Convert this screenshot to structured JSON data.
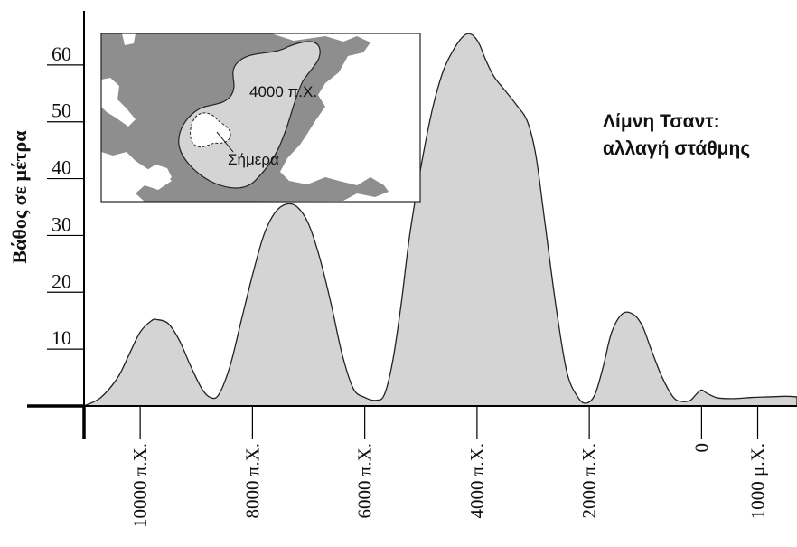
{
  "chart_data": {
    "type": "area",
    "title_lines": [
      "Λίμνη Τσαντ:",
      "αλλαγή στάθμης"
    ],
    "ylabel": "Βάθος σε μέτρα",
    "xlabel": "",
    "ylim": [
      0,
      70
    ],
    "xlim": [
      -11000,
      1700
    ],
    "yticks": [
      10,
      20,
      30,
      40,
      50,
      60
    ],
    "xticks": [
      {
        "value": -10000,
        "label": "10000 π.Χ."
      },
      {
        "value": -8000,
        "label": "8000 π.Χ."
      },
      {
        "value": -6000,
        "label": "6000 π.Χ."
      },
      {
        "value": -4000,
        "label": "4000 π.Χ."
      },
      {
        "value": -2000,
        "label": "2000 π.Χ."
      },
      {
        "value": 0,
        "label": "0"
      },
      {
        "value": 1000,
        "label": "1000 μ.Χ."
      }
    ],
    "series": [
      {
        "fill": "#d4d4d4",
        "x": [
          -11000,
          -10700,
          -10400,
          -10200,
          -10000,
          -9800,
          -9700,
          -9500,
          -9300,
          -9100,
          -8900,
          -8750,
          -8600,
          -8400,
          -8200,
          -8000,
          -7800,
          -7600,
          -7400,
          -7200,
          -7000,
          -6800,
          -6600,
          -6400,
          -6200,
          -6000,
          -5800,
          -5650,
          -5500,
          -5350,
          -5200,
          -5000,
          -4800,
          -4600,
          -4400,
          -4250,
          -4150,
          -4050,
          -3950,
          -3850,
          -3700,
          -3500,
          -3300,
          -3100,
          -2950,
          -2800,
          -2600,
          -2400,
          -2200,
          -2050,
          -1900,
          -1750,
          -1600,
          -1400,
          -1200,
          -1050,
          -900,
          -700,
          -500,
          -350,
          -200,
          -100,
          0,
          100,
          300,
          600,
          900,
          1200,
          1500,
          1700
        ],
        "y": [
          0,
          1.5,
          5,
          9,
          13,
          15,
          15.2,
          14.5,
          11.5,
          7,
          3,
          1.5,
          2,
          7,
          15,
          23,
          30,
          34,
          35.5,
          35,
          32,
          26,
          18,
          9,
          3,
          1.5,
          1,
          2,
          8,
          18,
          30,
          42,
          52,
          59,
          63,
          65,
          65.5,
          65,
          63.5,
          61,
          58,
          55.5,
          53,
          50,
          44,
          33,
          18,
          6,
          1.5,
          0.5,
          2,
          7,
          13,
          16.3,
          16,
          14,
          10,
          5,
          1.5,
          0.8,
          1,
          2,
          2.8,
          2.2,
          1.4,
          1.3,
          1.5,
          1.6,
          1.7,
          1.6
        ]
      }
    ]
  },
  "inset": {
    "label_past": "4000 π.Χ.",
    "label_today": "Σήμερα",
    "colors": {
      "land": "#8e8e8e",
      "lake_past": "#d4d4d4",
      "lake_today": "#ffffff",
      "background": "#ffffff"
    }
  },
  "colors": {
    "axis": "#000000",
    "area_stroke": "#222222",
    "area_fill": "#d4d4d4"
  }
}
